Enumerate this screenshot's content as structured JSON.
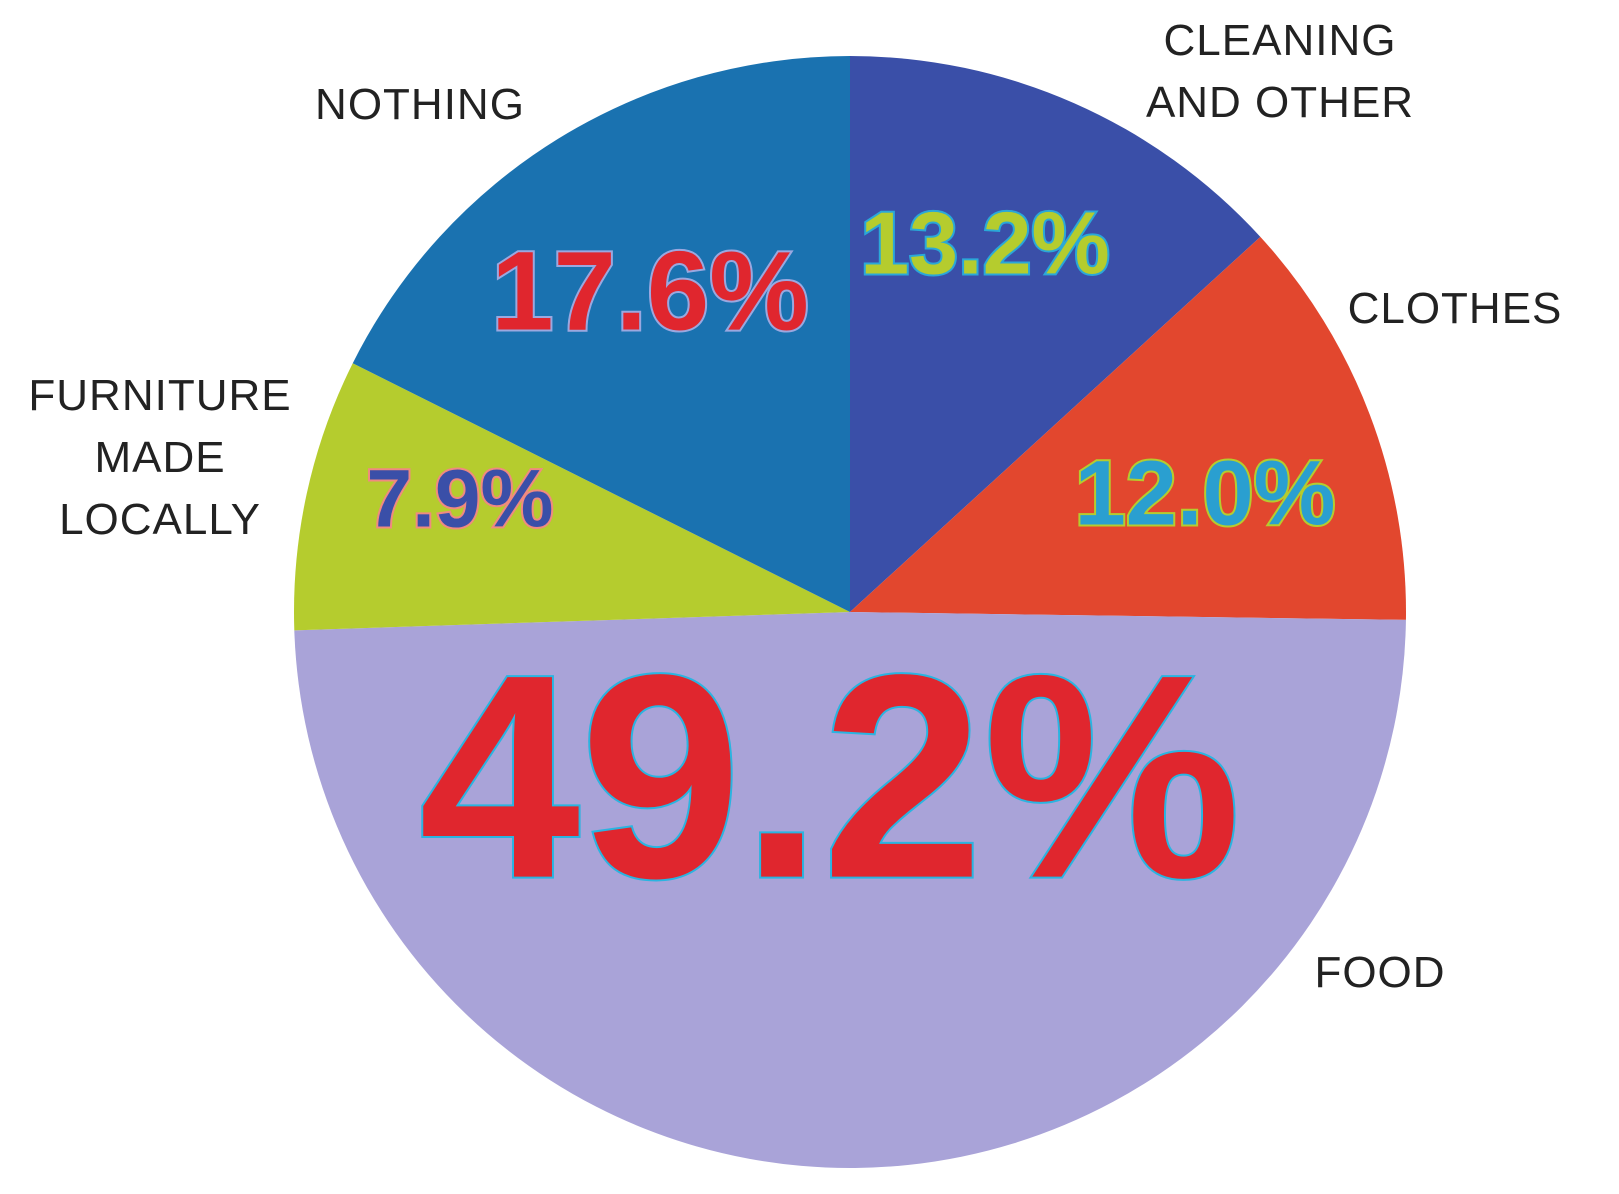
{
  "chart_data": {
    "type": "pie",
    "categories": [
      "CLEANING AND OTHER",
      "CLOTHES",
      "FOOD",
      "FURNITURE MADE LOCALLY",
      "NOTHING"
    ],
    "values": [
      13.2,
      12.0,
      49.2,
      7.9,
      17.6
    ],
    "value_labels": [
      "13.2%",
      "12.0%",
      "49.2%",
      "7.9%",
      "17.6%"
    ],
    "colors": [
      "#3a4fa8",
      "#e2472e",
      "#a9a3d8",
      "#b5cc2e",
      "#1a72b0"
    ]
  }
}
